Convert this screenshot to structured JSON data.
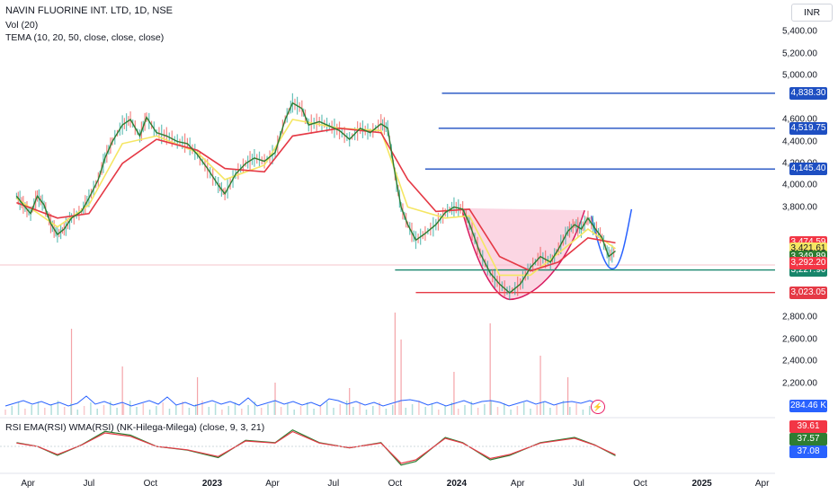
{
  "legend": {
    "title": "NAVIN FLUORINE INT. LTD, 1D, NSE",
    "vol": "Vol (20)",
    "tema": "TEMA (10, 20, 50, close, close, close)",
    "rsi": "RSI EMA(RSI) WMA(RSI)  (NK-Hilega-Milega) (close, 9, 3, 21)"
  },
  "currency": "INR",
  "icons": {
    "alert": "lightning-icon"
  },
  "colors": {
    "price_line": "#2e7d32",
    "tema_yellow": "#f5e663",
    "tema_red": "#e53945",
    "resistance": "#1e4fc2",
    "support_green": "#17856a",
    "support_red": "#e53945",
    "cup_fill": "#f8bbd0",
    "projection": "#2962ff",
    "volume_line": "#2962ff",
    "rsi_line": "#2e7d32",
    "rsi_ema": "#e53945"
  },
  "chart_data": {
    "type": "line",
    "title": "NAVIN FLUORINE INT. LTD, 1D, NSE",
    "x_axis": {
      "ticks": [
        {
          "label": "Apr",
          "date": "2022-04",
          "bold": false
        },
        {
          "label": "Jul",
          "date": "2022-07",
          "bold": false
        },
        {
          "label": "Oct",
          "date": "2022-10",
          "bold": false
        },
        {
          "label": "2023",
          "date": "2023-01",
          "bold": true
        },
        {
          "label": "Apr",
          "date": "2023-04",
          "bold": false
        },
        {
          "label": "Jul",
          "date": "2023-07",
          "bold": false
        },
        {
          "label": "Oct",
          "date": "2023-10",
          "bold": false
        },
        {
          "label": "2024",
          "date": "2024-01",
          "bold": true
        },
        {
          "label": "Apr",
          "date": "2024-04",
          "bold": false
        },
        {
          "label": "Jul",
          "date": "2024-07",
          "bold": false
        },
        {
          "label": "Oct",
          "date": "2024-10",
          "bold": false
        },
        {
          "label": "2025",
          "date": "2025-01",
          "bold": true
        },
        {
          "label": "Apr",
          "date": "2025-04",
          "bold": false
        }
      ]
    },
    "y_axis": {
      "ticks": [
        "5,400.00",
        "5,200.00",
        "5,000.00",
        "4,600.00",
        "4,400.00",
        "4,200.00",
        "4,000.00",
        "3,800.00",
        "2,800.00",
        "2,600.00",
        "2,400.00",
        "2,200.00"
      ],
      "tick_values": [
        5400,
        5200,
        5000,
        4600,
        4400,
        4200,
        4000,
        3800,
        2800,
        2600,
        2400,
        2200
      ],
      "range": [
        2100,
        5500
      ]
    },
    "price_series": {
      "name": "",
      "points": [
        [
          "2022-03-15",
          3900
        ],
        [
          "2022-03-25",
          3820
        ],
        [
          "2022-04-05",
          3740
        ],
        [
          "2022-04-15",
          3900
        ],
        [
          "2022-04-25",
          3820
        ],
        [
          "2022-05-05",
          3650
        ],
        [
          "2022-05-15",
          3550
        ],
        [
          "2022-05-25",
          3600
        ],
        [
          "2022-06-05",
          3700
        ],
        [
          "2022-06-20",
          3760
        ],
        [
          "2022-07-01",
          3880
        ],
        [
          "2022-07-15",
          4050
        ],
        [
          "2022-07-25",
          4250
        ],
        [
          "2022-08-05",
          4400
        ],
        [
          "2022-08-20",
          4550
        ],
        [
          "2022-09-01",
          4600
        ],
        [
          "2022-09-15",
          4450
        ],
        [
          "2022-09-25",
          4620
        ],
        [
          "2022-10-10",
          4480
        ],
        [
          "2022-10-25",
          4450
        ],
        [
          "2022-11-10",
          4400
        ],
        [
          "2022-11-25",
          4380
        ],
        [
          "2022-12-10",
          4280
        ],
        [
          "2022-12-25",
          4150
        ],
        [
          "2023-01-10",
          4000
        ],
        [
          "2023-01-20",
          3920
        ],
        [
          "2023-02-05",
          4100
        ],
        [
          "2023-02-20",
          4200
        ],
        [
          "2023-03-05",
          4250
        ],
        [
          "2023-03-20",
          4220
        ],
        [
          "2023-04-05",
          4300
        ],
        [
          "2023-04-20",
          4600
        ],
        [
          "2023-05-01",
          4750
        ],
        [
          "2023-05-15",
          4700
        ],
        [
          "2023-05-25",
          4550
        ],
        [
          "2023-06-10",
          4580
        ],
        [
          "2023-06-25",
          4540
        ],
        [
          "2023-07-10",
          4500
        ],
        [
          "2023-07-25",
          4420
        ],
        [
          "2023-08-10",
          4520
        ],
        [
          "2023-08-25",
          4480
        ],
        [
          "2023-09-10",
          4560
        ],
        [
          "2023-09-20",
          4520
        ],
        [
          "2023-10-01",
          4100
        ],
        [
          "2023-10-10",
          3800
        ],
        [
          "2023-10-20",
          3640
        ],
        [
          "2023-11-01",
          3500
        ],
        [
          "2023-11-15",
          3560
        ],
        [
          "2023-12-01",
          3640
        ],
        [
          "2023-12-15",
          3750
        ],
        [
          "2023-12-28",
          3800
        ],
        [
          "2024-01-10",
          3780
        ],
        [
          "2024-01-20",
          3650
        ],
        [
          "2024-02-05",
          3380
        ],
        [
          "2024-02-20",
          3200
        ],
        [
          "2024-03-05",
          3100
        ],
        [
          "2024-03-20",
          3020
        ],
        [
          "2024-04-05",
          3100
        ],
        [
          "2024-04-20",
          3250
        ],
        [
          "2024-05-05",
          3350
        ],
        [
          "2024-05-20",
          3300
        ],
        [
          "2024-06-01",
          3420
        ],
        [
          "2024-06-15",
          3580
        ],
        [
          "2024-06-25",
          3640
        ],
        [
          "2024-07-05",
          3600
        ],
        [
          "2024-07-15",
          3700
        ],
        [
          "2024-07-25",
          3610
        ],
        [
          "2024-08-05",
          3520
        ],
        [
          "2024-08-15",
          3350
        ],
        [
          "2024-08-25",
          3400
        ]
      ]
    },
    "tema_series": [
      {
        "name": "",
        "color": "#f5e663",
        "points": [
          [
            "2022-03-15",
            3880
          ],
          [
            "2022-05-15",
            3620
          ],
          [
            "2022-07-01",
            3820
          ],
          [
            "2022-08-20",
            4380
          ],
          [
            "2022-10-10",
            4450
          ],
          [
            "2022-12-10",
            4300
          ],
          [
            "2023-01-20",
            4050
          ],
          [
            "2023-03-20",
            4180
          ],
          [
            "2023-05-01",
            4600
          ],
          [
            "2023-07-10",
            4520
          ],
          [
            "2023-09-10",
            4500
          ],
          [
            "2023-10-20",
            3800
          ],
          [
            "2023-12-15",
            3700
          ],
          [
            "2024-01-20",
            3720
          ],
          [
            "2024-03-05",
            3180
          ],
          [
            "2024-04-20",
            3180
          ],
          [
            "2024-06-01",
            3380
          ],
          [
            "2024-07-15",
            3600
          ],
          [
            "2024-08-25",
            3421.61
          ]
        ]
      },
      {
        "name": "",
        "color": "#e53945",
        "points": [
          [
            "2022-03-15",
            3840
          ],
          [
            "2022-05-15",
            3700
          ],
          [
            "2022-07-01",
            3740
          ],
          [
            "2022-08-20",
            4200
          ],
          [
            "2022-10-10",
            4420
          ],
          [
            "2022-12-10",
            4320
          ],
          [
            "2023-01-20",
            4150
          ],
          [
            "2023-03-20",
            4120
          ],
          [
            "2023-05-01",
            4450
          ],
          [
            "2023-07-10",
            4520
          ],
          [
            "2023-09-10",
            4480
          ],
          [
            "2023-10-20",
            4050
          ],
          [
            "2023-12-01",
            3760
          ],
          [
            "2024-01-20",
            3780
          ],
          [
            "2024-03-05",
            3350
          ],
          [
            "2024-04-20",
            3220
          ],
          [
            "2024-06-01",
            3300
          ],
          [
            "2024-07-15",
            3520
          ],
          [
            "2024-08-25",
            3474.59
          ]
        ]
      }
    ],
    "horizontal_levels": [
      {
        "value": 4838.3,
        "label": "4,838.30",
        "color": "#1e4fc2",
        "from": "2023-12-10"
      },
      {
        "value": 4519.75,
        "label": "4,519.75",
        "color": "#1e4fc2",
        "from": "2023-12-05"
      },
      {
        "value": 4145.4,
        "label": "4,145.40",
        "color": "#1e4fc2",
        "from": "2023-11-15"
      },
      {
        "value": 3227.9,
        "label": "3,227.90",
        "color": "#17856a",
        "from": "2023-10-01"
      },
      {
        "value": 3023.05,
        "label": "3,023.05",
        "color": "#e53945",
        "from": "2023-11-01"
      }
    ],
    "price_tags": [
      {
        "value": 3474.59,
        "label": "3,474.59",
        "color": "#f23645",
        "text_color": "#ffffff"
      },
      {
        "value": 3421.61,
        "label": "3,421.61",
        "color": "#f5e663",
        "text_color": "#131722"
      },
      {
        "value": 3349.89,
        "label": "3,349.89",
        "color": "#2e7d32",
        "text_color": "#ffffff"
      },
      {
        "value": 3292.2,
        "label": "3,292.20",
        "color": "#f23645",
        "text_color": "#ffffff"
      }
    ],
    "volume": {
      "last_label": "284.46 K",
      "tag_color": "#2962ff",
      "spikes": [
        [
          "2022-06-05",
          0.8
        ],
        [
          "2022-08-20",
          0.45
        ],
        [
          "2022-12-10",
          0.35
        ],
        [
          "2023-04-05",
          0.3
        ],
        [
          "2023-07-25",
          0.25
        ],
        [
          "2023-10-01",
          0.95
        ],
        [
          "2023-10-10",
          0.7
        ],
        [
          "2023-12-28",
          0.4
        ],
        [
          "2024-02-20",
          0.85
        ],
        [
          "2024-05-05",
          0.55
        ],
        [
          "2024-06-15",
          0.35
        ]
      ]
    },
    "rsi": {
      "labels": [
        "39.61",
        "37.57",
        "37.08"
      ],
      "label_colors": [
        "#f23645",
        "#2e7d32",
        "#2962ff"
      ],
      "points": [
        [
          "2022-03-15",
          55
        ],
        [
          "2022-04-15",
          50
        ],
        [
          "2022-05-15",
          38
        ],
        [
          "2022-06-20",
          52
        ],
        [
          "2022-07-25",
          70
        ],
        [
          "2022-09-01",
          65
        ],
        [
          "2022-10-10",
          50
        ],
        [
          "2022-11-25",
          45
        ],
        [
          "2023-01-10",
          35
        ],
        [
          "2023-02-20",
          58
        ],
        [
          "2023-04-05",
          55
        ],
        [
          "2023-05-01",
          72
        ],
        [
          "2023-06-10",
          55
        ],
        [
          "2023-07-25",
          48
        ],
        [
          "2023-09-10",
          55
        ],
        [
          "2023-10-10",
          25
        ],
        [
          "2023-11-01",
          30
        ],
        [
          "2023-12-15",
          62
        ],
        [
          "2024-01-10",
          55
        ],
        [
          "2024-02-20",
          32
        ],
        [
          "2024-03-20",
          38
        ],
        [
          "2024-05-05",
          55
        ],
        [
          "2024-06-25",
          62
        ],
        [
          "2024-07-25",
          52
        ],
        [
          "2024-08-25",
          37.57
        ]
      ]
    }
  }
}
